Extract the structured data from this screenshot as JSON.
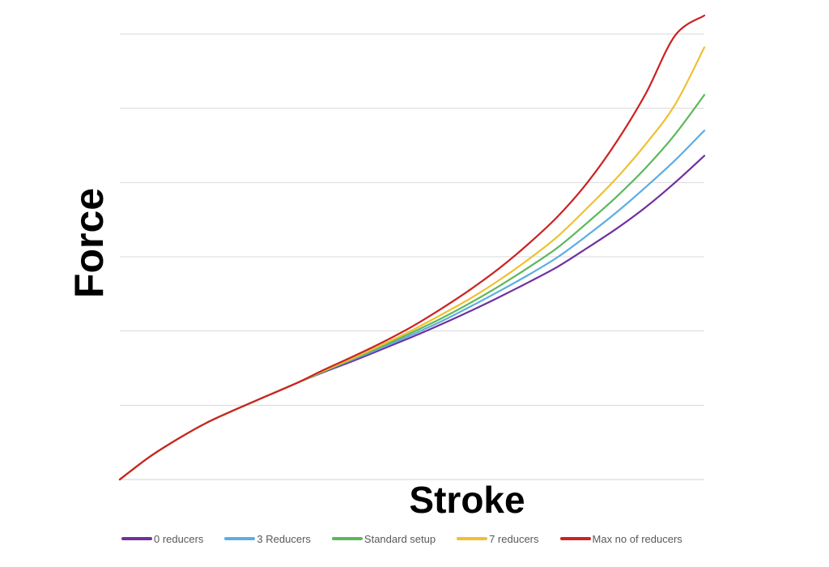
{
  "chart_data": {
    "type": "line",
    "title": "",
    "xlabel": "Stroke",
    "ylabel": "Force",
    "xlim": [
      0,
      100
    ],
    "ylim": [
      0,
      6
    ],
    "grid": true,
    "legend_position": "bottom",
    "x": [
      0,
      5,
      10,
      15,
      20,
      25,
      30,
      35,
      40,
      45,
      50,
      55,
      60,
      65,
      70,
      75,
      80,
      85,
      90,
      95,
      100
    ],
    "series": [
      {
        "name": "0 reducers",
        "color": "#7030a0",
        "values": [
          0,
          0.3,
          0.55,
          0.77,
          0.95,
          1.12,
          1.29,
          1.45,
          1.6,
          1.76,
          1.92,
          2.09,
          2.27,
          2.46,
          2.66,
          2.87,
          3.12,
          3.38,
          3.67,
          4.0,
          4.36
        ]
      },
      {
        "name": "3 Reducers",
        "color": "#5dade2",
        "values": [
          0,
          0.3,
          0.55,
          0.77,
          0.95,
          1.12,
          1.29,
          1.46,
          1.62,
          1.78,
          1.95,
          2.13,
          2.33,
          2.54,
          2.76,
          3.0,
          3.29,
          3.6,
          3.94,
          4.3,
          4.7
        ]
      },
      {
        "name": "Standard setup",
        "color": "#5cb85c",
        "values": [
          0,
          0.3,
          0.55,
          0.77,
          0.95,
          1.12,
          1.29,
          1.46,
          1.63,
          1.8,
          1.98,
          2.17,
          2.38,
          2.61,
          2.86,
          3.13,
          3.46,
          3.81,
          4.2,
          4.65,
          5.18
        ]
      },
      {
        "name": "7 reducers",
        "color": "#f0c030",
        "values": [
          0,
          0.3,
          0.55,
          0.77,
          0.95,
          1.12,
          1.29,
          1.47,
          1.64,
          1.82,
          2.01,
          2.22,
          2.44,
          2.69,
          2.97,
          3.28,
          3.66,
          4.06,
          4.52,
          5.05,
          5.82
        ]
      },
      {
        "name": "Max no of reducers",
        "color": "#cc2222",
        "values": [
          0,
          0.3,
          0.55,
          0.77,
          0.95,
          1.12,
          1.29,
          1.48,
          1.66,
          1.85,
          2.06,
          2.3,
          2.56,
          2.85,
          3.18,
          3.55,
          4.0,
          4.55,
          5.2,
          5.98,
          6.25
        ]
      }
    ]
  }
}
